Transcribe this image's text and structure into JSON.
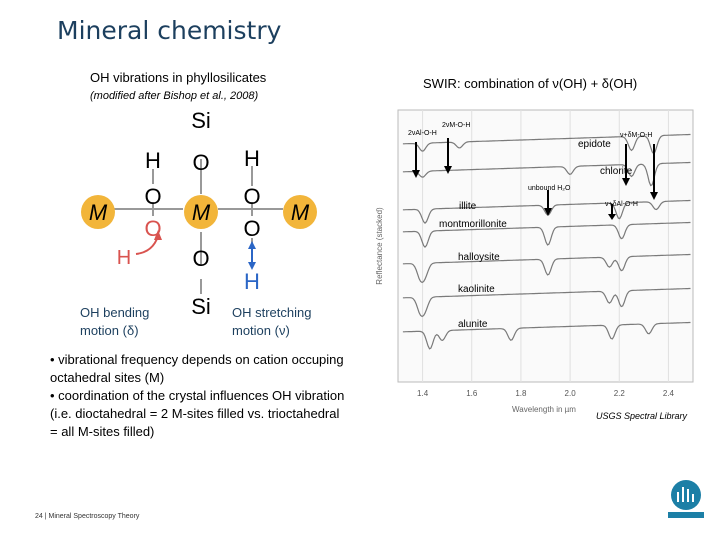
{
  "slide": {
    "title": "Mineral chemistry",
    "footer": "24  |  Mineral Spectroscopy Theory"
  },
  "left": {
    "heading": "OH vibrations in phyllosilicates",
    "subheading": "(modified after Bishop et al., 2008)",
    "diagram": {
      "si_top": "Si",
      "si_bottom": "Si",
      "h": "H",
      "o": "O",
      "m": "M",
      "bending_label": "OH bending motion (δ)",
      "stretching_label": "OH stretching motion (ν)"
    },
    "bullets": [
      "• vibrational frequency depends on cation occuping octahedral sites (M)",
      "• coordination of the crystal influences OH vibration (i.e. dioctahedral = 2 M-sites filled vs. trioctahedral = all M-sites filled)"
    ]
  },
  "right": {
    "heading": "SWIR: combination of ν(OH) + δ(OH)",
    "source": "USGS Spectral Library",
    "colors": {
      "curve": "#7a7a7a",
      "grid": "#e0e0e0",
      "m_atom": "#f2b53a",
      "h_red": "#d9534f",
      "arrow_blue": "#2b66c6"
    },
    "chart_data": {
      "type": "line",
      "xlabel": "Wavelength in µm",
      "ylabel": "Reflectance (stacked)",
      "x_ticks": [
        "1.4",
        "1.6",
        "1.8",
        "2.0",
        "2.2",
        "2.4"
      ],
      "xlim": [
        1.3,
        2.5
      ],
      "series": [
        {
          "name": "epidote"
        },
        {
          "name": "chlorite"
        },
        {
          "name": "illite"
        },
        {
          "name": "montmorillonite"
        },
        {
          "name": "halloysite"
        },
        {
          "name": "kaolinite"
        },
        {
          "name": "alunite"
        }
      ],
      "annotations": [
        "2νAl-O-H",
        "2νM-O-H",
        "ν+δM-O-H",
        "unbound H₂O",
        "ν+δAl-O-H"
      ]
    }
  }
}
